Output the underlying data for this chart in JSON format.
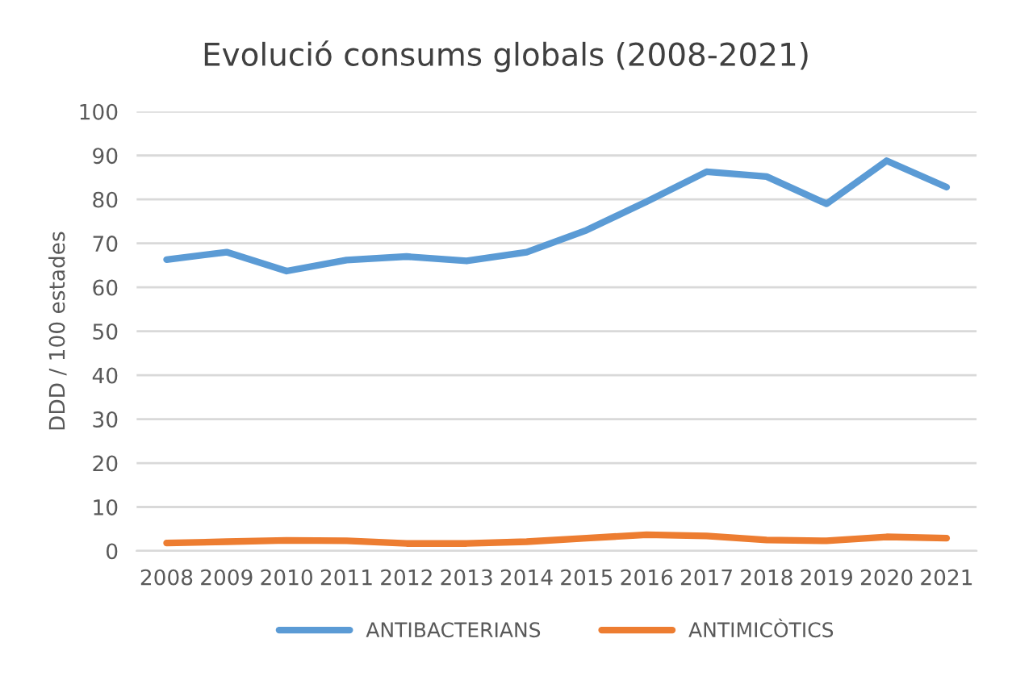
{
  "chart_data": {
    "type": "line",
    "title": "Evolució consums globals (2008-2021)",
    "ylabel": "DDD / 100 estades",
    "categories": [
      "2008",
      "2009",
      "2010",
      "2011",
      "2012",
      "2013",
      "2014",
      "2015",
      "2016",
      "2017",
      "2018",
      "2019",
      "2020",
      "2021"
    ],
    "series": [
      {
        "name": "ANTIBACTERIANS",
        "color": "#5b9bd5",
        "values": [
          66.3,
          68,
          63.7,
          66.2,
          67,
          66,
          68,
          73,
          79.5,
          86.3,
          85.2,
          79,
          88.8,
          82.8
        ]
      },
      {
        "name": "ANTIMICÒTICS",
        "color": "#ed7d31",
        "values": [
          1.8,
          2.1,
          2.4,
          2.3,
          1.7,
          1.7,
          2.1,
          2.9,
          3.7,
          3.4,
          2.5,
          2.3,
          3.2,
          2.9
        ]
      }
    ],
    "ylim": [
      0,
      100
    ],
    "yticks": [
      0,
      10,
      20,
      30,
      40,
      50,
      60,
      70,
      80,
      90,
      100
    ],
    "grid": "y",
    "legend": "bottom",
    "marker": "none",
    "line_style": "solid"
  }
}
